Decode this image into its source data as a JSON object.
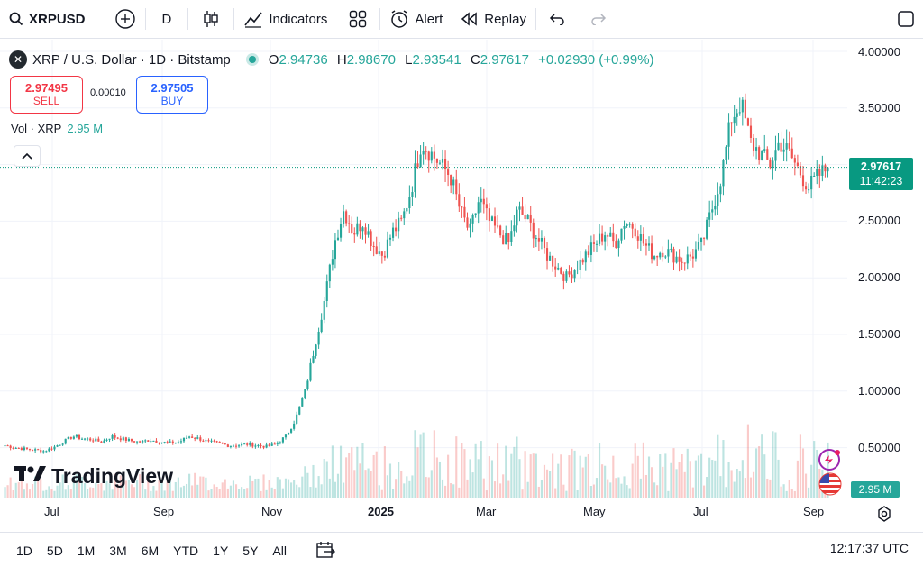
{
  "toolbar": {
    "symbol": "XRPUSD",
    "interval": "D",
    "indicators": "Indicators",
    "alert": "Alert",
    "replay": "Replay"
  },
  "legend": {
    "title": "XRP / U.S. Dollar · 1D · Bitstamp",
    "coin_glyph": "✕",
    "o_key": "O",
    "o_val": "2.94736",
    "h_key": "H",
    "h_val": "2.98670",
    "l_key": "L",
    "l_val": "2.93541",
    "c_key": "C",
    "c_val": "2.97617",
    "change": "+0.02930 (+0.99%)"
  },
  "trade": {
    "sell_price": "2.97495",
    "sell_label": "SELL",
    "spread": "0.00010",
    "buy_price": "2.97505",
    "buy_label": "BUY"
  },
  "volume": {
    "label": "Vol · XRP",
    "value": "2.95 M"
  },
  "price_axis": [
    "4.00000",
    "3.50000",
    "2.50000",
    "2.00000",
    "1.50000",
    "1.00000",
    "0.50000"
  ],
  "last_price": {
    "price": "2.97617",
    "countdown": "11:42:23"
  },
  "time_axis": [
    "Jul",
    "Sep",
    "Nov",
    "2025",
    "Mar",
    "May",
    "Jul",
    "Sep"
  ],
  "ranges": [
    "1D",
    "5D",
    "1M",
    "3M",
    "6M",
    "YTD",
    "1Y",
    "5Y",
    "All"
  ],
  "clock": "12:17:37 UTC",
  "brand": "TradingView",
  "colors": {
    "up": "#26a69a",
    "down": "#ef5350",
    "accent": "#2962ff"
  },
  "chart_data": {
    "type": "candlestick",
    "y_scale": "linear",
    "ylim": [
      0.3,
      4.0
    ],
    "x_ticks": [
      "Jul",
      "Sep",
      "Nov",
      "2025",
      "Mar",
      "May",
      "Jul",
      "Sep"
    ],
    "close_path": [
      0.52,
      0.5,
      0.49,
      0.48,
      0.47,
      0.5,
      0.55,
      0.6,
      0.58,
      0.57,
      0.55,
      0.6,
      0.58,
      0.56,
      0.55,
      0.57,
      0.55,
      0.54,
      0.55,
      0.6,
      0.58,
      0.55,
      0.54,
      0.52,
      0.52,
      0.53,
      0.52,
      0.51,
      0.53,
      0.6,
      0.75,
      1.0,
      1.4,
      1.8,
      2.3,
      2.6,
      2.4,
      2.5,
      2.3,
      2.2,
      2.4,
      2.5,
      2.8,
      3.2,
      3.1,
      3.0,
      2.9,
      2.6,
      2.4,
      2.7,
      2.5,
      2.4,
      2.3,
      2.6,
      2.5,
      2.35,
      2.2,
      2.1,
      2.0,
      2.1,
      2.2,
      2.3,
      2.4,
      2.3,
      2.5,
      2.45,
      2.3,
      2.2,
      2.25,
      2.2,
      2.15,
      2.2,
      2.3,
      2.6,
      2.9,
      3.4,
      3.55,
      3.2,
      3.1,
      3.0,
      3.2,
      3.1,
      2.95,
      2.8,
      2.9,
      2.97
    ],
    "volume_label": "2.95 M"
  }
}
